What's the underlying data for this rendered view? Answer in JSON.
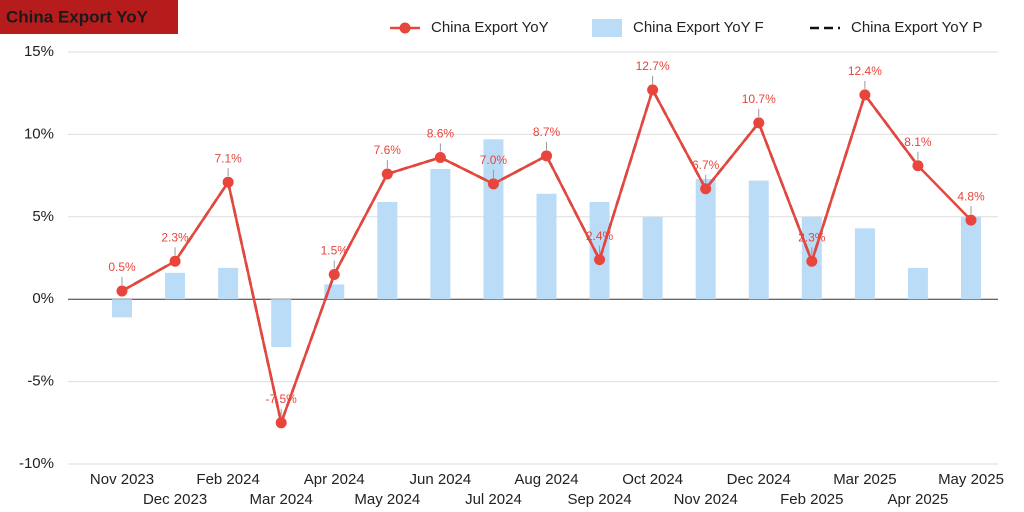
{
  "chart_data": {
    "type": "combo",
    "title": "China Export YoY",
    "categories": [
      "Nov 2023",
      "Dec 2023",
      "Feb 2024",
      "Mar 2024",
      "Apr 2024",
      "May 2024",
      "Jun 2024",
      "Jul 2024",
      "Aug 2024",
      "Sep 2024",
      "Oct 2024",
      "Nov 2024",
      "Dec 2024",
      "Feb 2025",
      "Mar 2025",
      "Apr 2025",
      "May 2025"
    ],
    "series": [
      {
        "name": "China Export YoY",
        "type": "line",
        "color": "#e8453c",
        "values": [
          0.5,
          2.3,
          7.1,
          -7.5,
          1.5,
          7.6,
          8.6,
          7.0,
          8.7,
          2.4,
          12.7,
          6.7,
          10.7,
          2.3,
          12.4,
          8.1,
          4.8
        ],
        "value_labels": [
          "0.5%",
          "2.3%",
          "7.1%",
          "-7.5%",
          "1.5%",
          "7.6%",
          "8.6%",
          "7.0%",
          "8.7%",
          "2.4%",
          "12.7%",
          "6.7%",
          "10.7%",
          "2.3%",
          "12.4%",
          "8.1%",
          "4.8%"
        ]
      },
      {
        "name": "China Export YoY F",
        "type": "bar",
        "color": "#bbdcf7",
        "values": [
          -1.1,
          1.6,
          1.9,
          -2.9,
          0.9,
          5.9,
          7.9,
          9.7,
          6.4,
          5.9,
          5.0,
          7.3,
          7.2,
          5.0,
          4.3,
          1.9,
          5.0
        ]
      },
      {
        "name": "China Export YoY P",
        "type": "line",
        "dash": true,
        "color": "#111111",
        "values": [
          0.5,
          2.3,
          7.1,
          -7.5,
          1.5,
          7.6,
          8.6,
          7.0,
          8.7,
          2.4,
          12.7,
          6.7,
          10.7,
          2.3,
          12.4,
          8.1,
          null
        ]
      }
    ],
    "ylim": [
      -10,
      15
    ],
    "yticks": [
      {
        "value": -10,
        "label": "-10%"
      },
      {
        "value": -5,
        "label": "-5%"
      },
      {
        "value": 0,
        "label": "0%"
      },
      {
        "value": 5,
        "label": "5%"
      },
      {
        "value": 10,
        "label": "10%"
      },
      {
        "value": 15,
        "label": "15%"
      }
    ],
    "grid": true,
    "legend": "top"
  }
}
